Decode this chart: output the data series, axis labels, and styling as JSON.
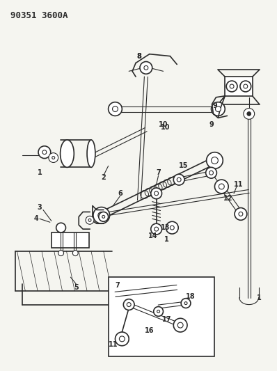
{
  "title": "90351 3600A",
  "bg_color": "#f5f5f0",
  "line_color": "#2a2a2a",
  "title_fontsize": 9,
  "label_fontsize": 7,
  "fig_width": 3.98,
  "fig_height": 5.33,
  "dpi": 100
}
